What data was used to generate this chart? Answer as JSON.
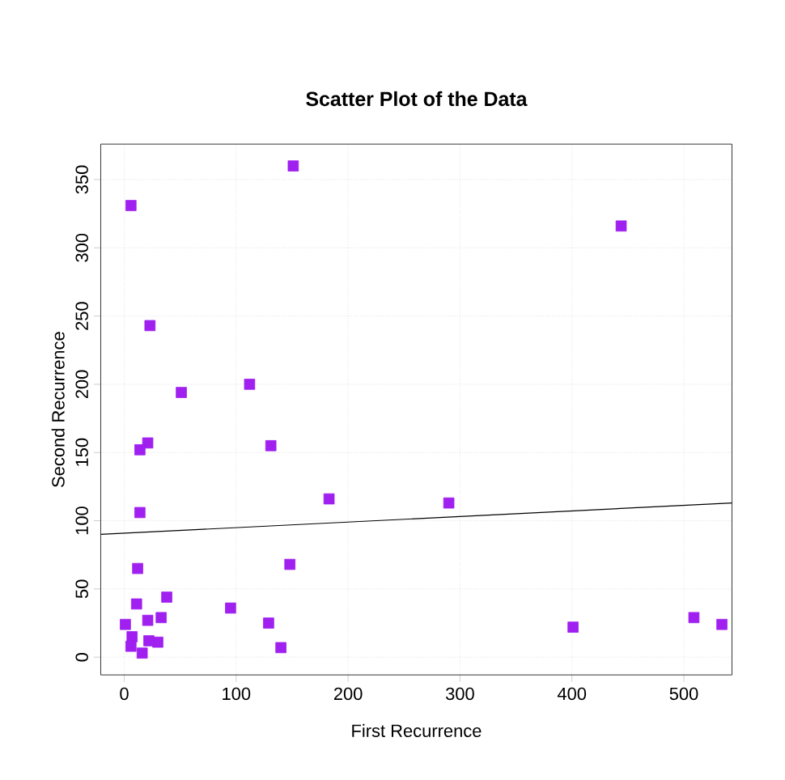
{
  "chart_data": {
    "type": "scatter",
    "title": "Scatter Plot of the Data",
    "xlabel": "First Recurrence",
    "ylabel": "Second Recurrence",
    "xlim": [
      -21,
      543
    ],
    "ylim": [
      -13,
      376
    ],
    "xticks": [
      0,
      100,
      200,
      300,
      400,
      500
    ],
    "yticks": [
      0,
      50,
      100,
      150,
      200,
      250,
      300,
      350
    ],
    "grid": true,
    "marker": "square",
    "series": [
      {
        "color": "#a020f0",
        "x": [
          6,
          151,
          23,
          51,
          112,
          21,
          14,
          131,
          183,
          14,
          12,
          148,
          11,
          38,
          95,
          33,
          21,
          129,
          1,
          7,
          30,
          22,
          6,
          140,
          16,
          290,
          444,
          401,
          509,
          534
        ],
        "values": [
          331,
          360,
          243,
          194,
          200,
          157,
          152,
          155,
          116,
          106,
          65,
          68,
          39,
          44,
          36,
          29,
          27,
          25,
          24,
          15,
          11,
          12,
          8,
          7,
          3,
          113,
          316,
          22,
          29,
          24
        ]
      },
      {
        "type": "line",
        "marker": "none",
        "color": "#000000",
        "x": [
          -21,
          543
        ],
        "values": [
          90,
          113
        ]
      }
    ]
  }
}
